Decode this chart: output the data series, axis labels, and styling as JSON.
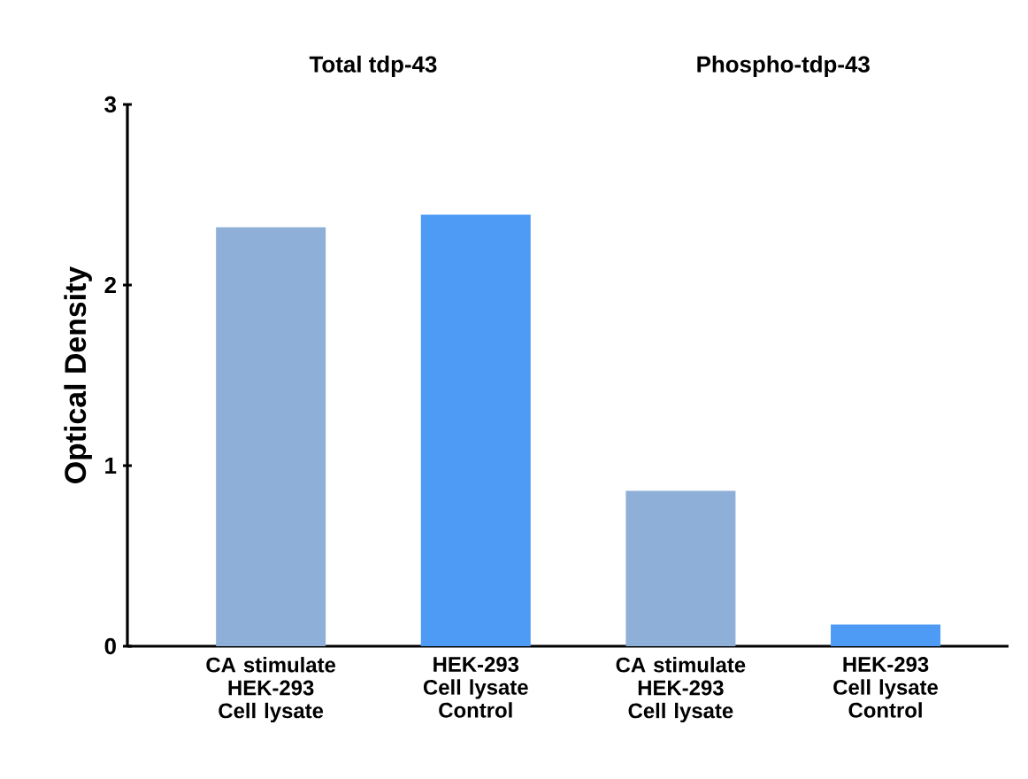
{
  "chart_data": {
    "type": "bar",
    "ylabel": "Optical Density",
    "categories": [
      "CA stimulate HEK-293 Cell lysate",
      "HEK-293 Cell lysate Control",
      "CA stimulate HEK-293 Cell lysate",
      "HEK-293 Cell lysate Control"
    ],
    "values": [
      2.32,
      2.39,
      0.86,
      0.12
    ],
    "colors": [
      "#8eafd8",
      "#4e9bf6",
      "#8eafd8",
      "#4e9bf6"
    ],
    "ylim": [
      0,
      3
    ],
    "yticks": [
      0,
      1,
      2,
      3
    ],
    "annotations": [
      "Total  tdp-43",
      "Phospho-tdp-43"
    ],
    "grid": false
  }
}
